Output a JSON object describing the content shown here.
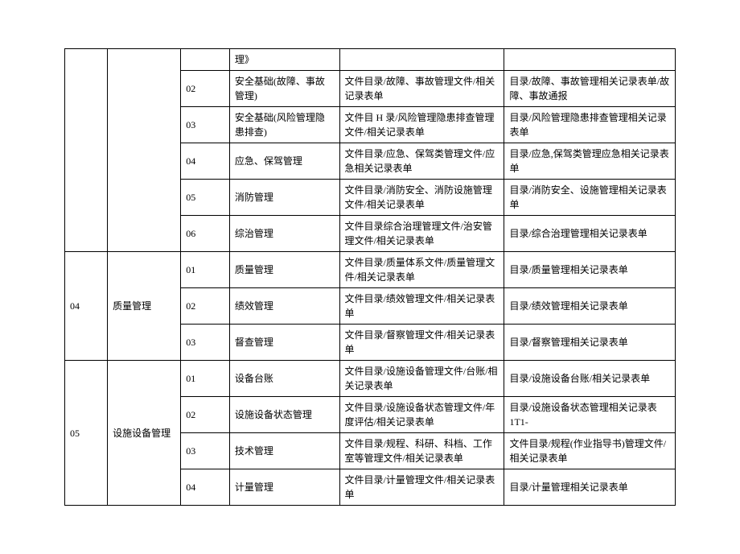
{
  "table": {
    "colors": {
      "border": "#000000",
      "text": "#000000",
      "background": "#ffffff"
    },
    "fontsize": 12,
    "rows": [
      {
        "c1": "",
        "c2": "",
        "c3": "",
        "c4": "理》",
        "c5": "",
        "c6": ""
      },
      {
        "c3": "02",
        "c4": "安全基础(故障、事故管理)",
        "c5": "文件目录/故障、事故管理文件/相关记录表单",
        "c6": "目录/故障、事故管理相关记录表单/故障、事故通报"
      },
      {
        "c3": "03",
        "c4": "安全基础(风险管理隐患排查)",
        "c5": "文件目 H 录/风险管理隐患排查管理文件/相关记录表单",
        "c6": "目录/风险管理隐患排查管理相关记录表单"
      },
      {
        "c3": "04",
        "c4": "应急、保驾管理",
        "c5": "文件目录/应急、保驾类管理文件/应急相关记录表单",
        "c6": "目录/应急,保驾类管理应急相关记录表单"
      },
      {
        "c3": "05",
        "c4": "消防管理",
        "c5": "文件目录/消防安全、消防设施管理文件/相关记录表单",
        "c6": "目录/消防安全、设施管理相关记录表单"
      },
      {
        "c3": "06",
        "c4": "综治管理",
        "c5": "文件目录综合治理管理文件/治安管理文件/相关记录表单",
        "c6": "目录/综合治理管理相关记录表单"
      },
      {
        "c1": "04",
        "c2": "质量管理",
        "rows": [
          {
            "c3": "01",
            "c4": "质量管理",
            "c5": "文件目录/质量体系文件/质量管理文件/相关记录表单",
            "c6": "目录/质量管理相关记录表单"
          },
          {
            "c3": "02",
            "c4": "绩效管理",
            "c5": "文件目录/绩效管理文件/相关记录表单",
            "c6": "目录/绩效管理相关记录表单"
          },
          {
            "c3": "03",
            "c4": "督查管理",
            "c5": "文件目录/督察管理文件/相关记录表单",
            "c6": "目录/督察管理相关记录表单"
          }
        ]
      },
      {
        "c1": "05",
        "c2": "设施设备管理",
        "rows": [
          {
            "c3": "01",
            "c4": "设备台账",
            "c5": "文件目录/设施设备管理文件/台账/相关记录表单",
            "c6": "目录/设施设备台账/相关记录表单"
          },
          {
            "c3": "02",
            "c4": "设施设备状态管理",
            "c5": "文件目录/设施设备状态管理文件/年度评估/相关记录表单",
            "c6": "目录/设施设备状态管理相关记录表 1T1-"
          },
          {
            "c3": "03",
            "c4": "技术管理",
            "c5": "文件目录/规程、科研、科档、工作室等管理文件/相关记录表单",
            "c6": "文件目录/规程(作业指导书)管理文件/相关记录表单"
          },
          {
            "c3": "04",
            "c4": "计量管理",
            "c5": "文件目录/计量管理文件/相关记录表单",
            "c6": "目录/计量管理相关记录表单"
          }
        ]
      }
    ]
  }
}
